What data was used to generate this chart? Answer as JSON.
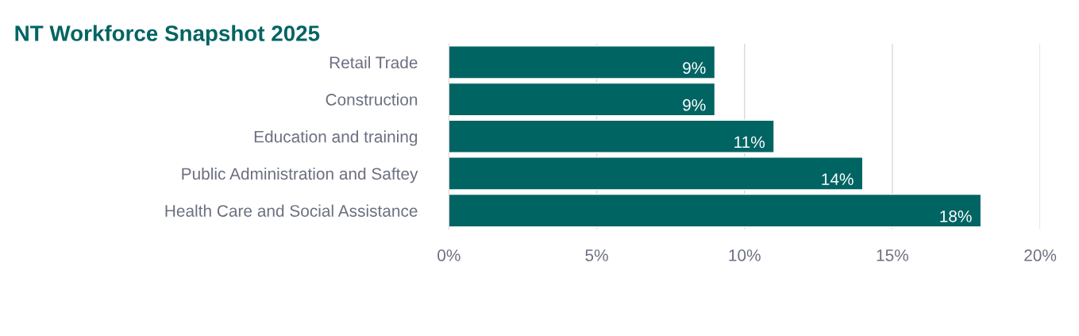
{
  "chart_data": {
    "type": "bar",
    "orientation": "horizontal",
    "title": "NT Workforce Snapshot 2025",
    "categories": [
      "Retail Trade",
      "Construction",
      "Education and training",
      "Public Administration and Saftey",
      "Health Care and Social Assistance"
    ],
    "values": [
      9,
      9,
      11,
      14,
      18
    ],
    "color": "#006463",
    "xlim": [
      0,
      20
    ],
    "xticks": [
      {
        "value": 0,
        "label": "0%"
      },
      {
        "value": 5,
        "label": "5%"
      },
      {
        "value": 10,
        "label": "10%"
      },
      {
        "value": 15,
        "label": "15%"
      },
      {
        "value": 20,
        "label": "20%"
      }
    ],
    "value_labels": [
      "9%",
      "9%",
      "11%",
      "14%",
      "18%"
    ],
    "grid": "x",
    "legend": false
  }
}
